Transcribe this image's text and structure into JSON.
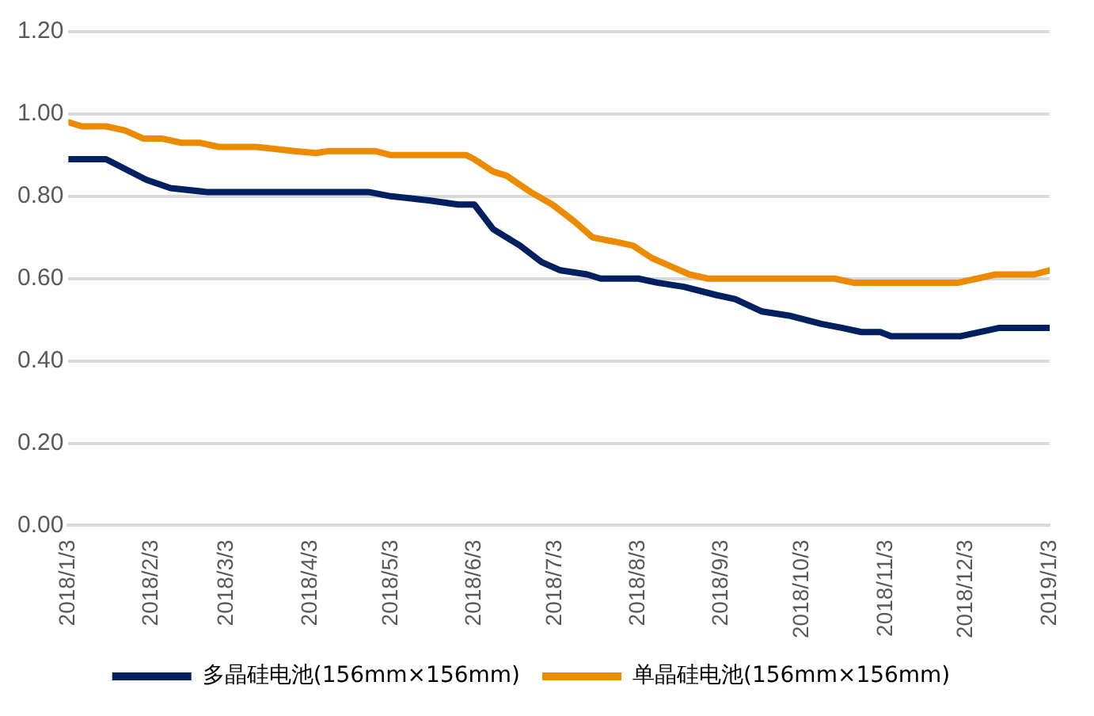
{
  "chart_data": {
    "type": "line",
    "legend": "bottom",
    "grid": "y",
    "marker": "none",
    "line_style": "solid",
    "xlim": [
      "2018-01-03",
      "2019-01-03"
    ],
    "xticks": [
      {
        "value": "2018-01-03",
        "label": "2018/1/3"
      },
      {
        "value": "2018-02-03",
        "label": "2018/2/3"
      },
      {
        "value": "2018-03-03",
        "label": "2018/3/3"
      },
      {
        "value": "2018-04-03",
        "label": "2018/4/3"
      },
      {
        "value": "2018-05-03",
        "label": "2018/5/3"
      },
      {
        "value": "2018-06-03",
        "label": "2018/6/3"
      },
      {
        "value": "2018-07-03",
        "label": "2018/7/3"
      },
      {
        "value": "2018-08-03",
        "label": "2018/8/3"
      },
      {
        "value": "2018-09-03",
        "label": "2018/9/3"
      },
      {
        "value": "2018-10-03",
        "label": "2018/10/3"
      },
      {
        "value": "2018-11-03",
        "label": "2018/11/3"
      },
      {
        "value": "2018-12-03",
        "label": "2018/12/3"
      },
      {
        "value": "2019-01-03",
        "label": "2019/1/3"
      }
    ],
    "ylim": [
      0,
      1.2
    ],
    "yticks": [
      {
        "value": 0,
        "label": "0.00"
      },
      {
        "value": 0.2,
        "label": "0.20"
      },
      {
        "value": 0.4,
        "label": "0.40"
      },
      {
        "value": 0.6,
        "label": "0.60"
      },
      {
        "value": 0.8,
        "label": "0.80"
      },
      {
        "value": 1,
        "label": "1.00"
      },
      {
        "value": 1.2,
        "label": "1.20"
      }
    ],
    "series": [
      {
        "name": "多晶硅电池(156mm×156mm)",
        "color": "#002060",
        "x": [
          "2018-01-03",
          "2018-01-17",
          "2018-02-01",
          "2018-02-10",
          "2018-02-24",
          "2018-04-25",
          "2018-05-03",
          "2018-05-17",
          "2018-05-28",
          "2018-06-03",
          "2018-06-10",
          "2018-06-20",
          "2018-06-28",
          "2018-07-05",
          "2018-07-15",
          "2018-07-20",
          "2018-08-03",
          "2018-08-10",
          "2018-08-20",
          "2018-09-01",
          "2018-09-08",
          "2018-09-18",
          "2018-09-28",
          "2018-10-10",
          "2018-10-18",
          "2018-10-25",
          "2018-11-01",
          "2018-11-05",
          "2018-12-01",
          "2018-12-15",
          "2019-01-03"
        ],
        "values": [
          0.89,
          0.89,
          0.84,
          0.82,
          0.81,
          0.81,
          0.8,
          0.79,
          0.78,
          0.78,
          0.72,
          0.68,
          0.64,
          0.62,
          0.61,
          0.6,
          0.6,
          0.59,
          0.58,
          0.56,
          0.55,
          0.52,
          0.51,
          0.49,
          0.48,
          0.47,
          0.47,
          0.46,
          0.46,
          0.48,
          0.48
        ]
      },
      {
        "name": "单晶硅电池(156mm×156mm)",
        "color": "#ed8b00",
        "x": [
          "2018-01-03",
          "2018-01-08",
          "2018-01-17",
          "2018-01-24",
          "2018-01-31",
          "2018-02-07",
          "2018-02-14",
          "2018-02-21",
          "2018-02-28",
          "2018-03-14",
          "2018-03-28",
          "2018-04-05",
          "2018-04-10",
          "2018-04-27",
          "2018-05-03",
          "2018-05-31",
          "2018-06-03",
          "2018-06-10",
          "2018-06-15",
          "2018-06-24",
          "2018-07-02",
          "2018-07-10",
          "2018-07-17",
          "2018-07-25",
          "2018-08-01",
          "2018-08-08",
          "2018-08-15",
          "2018-08-22",
          "2018-08-29",
          "2018-10-15",
          "2018-10-22",
          "2018-11-30",
          "2018-12-07",
          "2018-12-14",
          "2018-12-28",
          "2019-01-03"
        ],
        "values": [
          0.98,
          0.97,
          0.97,
          0.96,
          0.94,
          0.94,
          0.93,
          0.93,
          0.92,
          0.92,
          0.91,
          0.905,
          0.91,
          0.91,
          0.9,
          0.9,
          0.89,
          0.86,
          0.85,
          0.81,
          0.78,
          0.74,
          0.7,
          0.69,
          0.68,
          0.65,
          0.63,
          0.61,
          0.6,
          0.6,
          0.59,
          0.59,
          0.6,
          0.61,
          0.61,
          0.62
        ]
      }
    ]
  }
}
